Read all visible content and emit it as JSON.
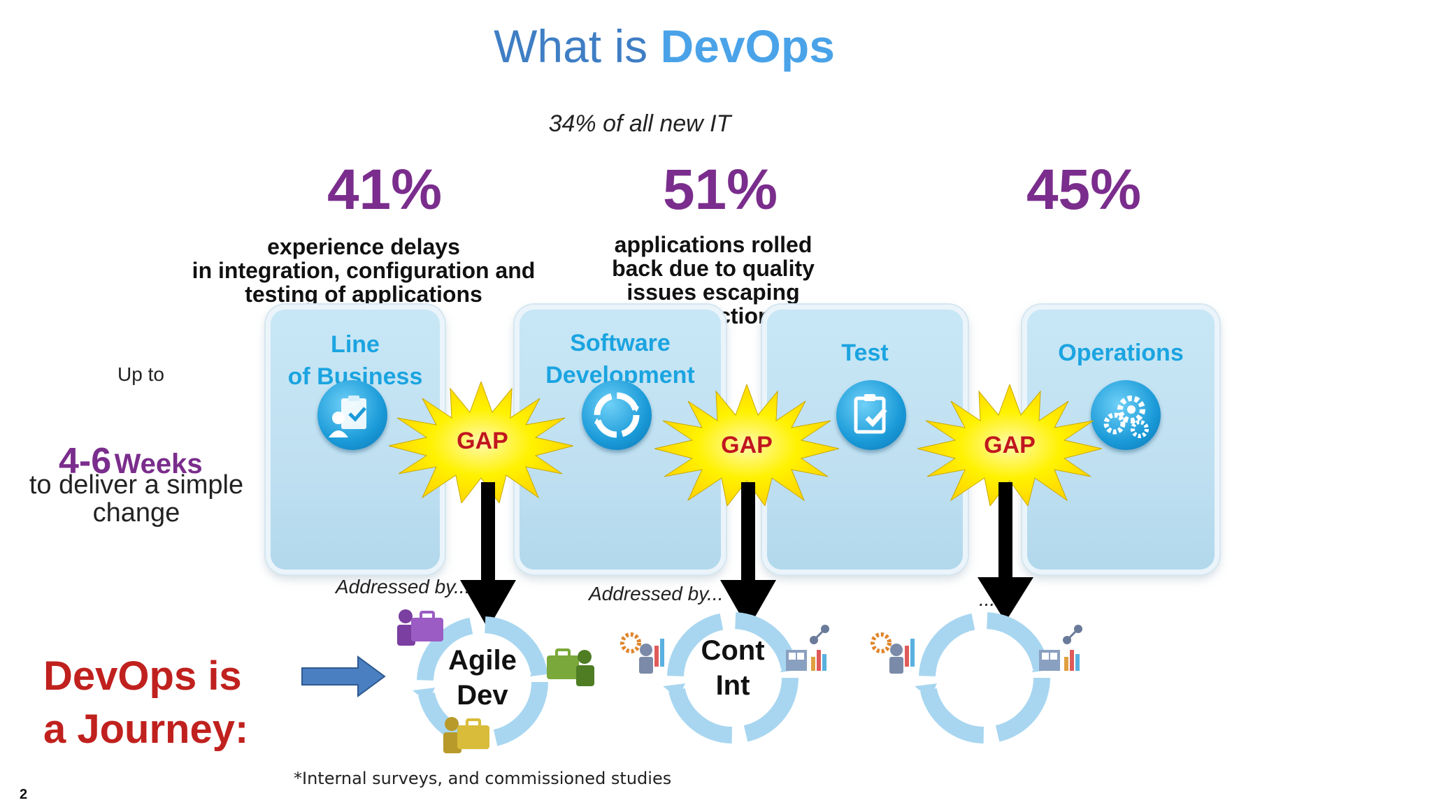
{
  "title": {
    "prefix": "What is",
    "highlight": "DevOps"
  },
  "subtitle": "34% of all new IT",
  "stats": [
    {
      "value": "41%",
      "text_lines": [
        "experience delays",
        "in integration, configuration and",
        "testing of applications"
      ]
    },
    {
      "value": "51%",
      "text_lines": [
        "applications rolled",
        "back due to quality",
        "issues escaping",
        "production"
      ]
    },
    {
      "value": "45%",
      "text_lines": []
    }
  ],
  "columns": [
    {
      "label_lines": [
        "Line",
        "of Business"
      ],
      "icon": "clipboard-person-icon"
    },
    {
      "label_lines": [
        "Software",
        "Development"
      ],
      "icon": "cycle-arrows-icon"
    },
    {
      "label_lines": [
        "Test"
      ],
      "icon": "clipboard-check-icon"
    },
    {
      "label_lines": [
        "Operations"
      ],
      "icon": "gears-icon"
    }
  ],
  "gaps": [
    "GAP",
    "GAP",
    "GAP"
  ],
  "left_panel": {
    "up_to": "Up to",
    "weeks_num": "4-6",
    "weeks_word": "Weeks",
    "line1": "to deliver a simple",
    "line2": "change"
  },
  "journey": {
    "line1": "DevOps is",
    "line2": "a Journey:"
  },
  "addressed": [
    "Addressed by...",
    "Addressed by...",
    "..."
  ],
  "cycles": [
    {
      "label_lines": [
        "Agile",
        "Dev"
      ]
    },
    {
      "label_lines": [
        "Cont",
        "Int"
      ]
    },
    {
      "label_lines": []
    }
  ],
  "footnote": "*Internal surveys, and commissioned studies",
  "page_number": "2",
  "colors": {
    "title": "#3f7ec4",
    "title_highlight": "#4aa3e8",
    "percent": "#7a2d8c",
    "journey": "#c0211e",
    "gap_text": "#c0161f",
    "column_label": "#1ba4e0"
  }
}
